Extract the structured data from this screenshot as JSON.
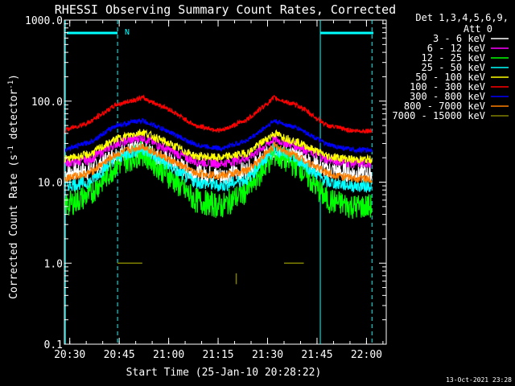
{
  "chart_data": {
    "type": "line",
    "title": "RHESSI Observing Summary Count Rates, Corrected",
    "xlabel": "Start Time (25-Jan-10 20:28:22)",
    "ylabel_main": "Corrected Count Rate (s",
    "ylabel_sup1": "-1",
    "ylabel_mid": " detector",
    "ylabel_sup2": "-1",
    "ylabel_end": ")",
    "yscale": "log",
    "ylim": [
      0.1,
      1000
    ],
    "xlim": [
      "20:28:22",
      "22:06:00"
    ],
    "x_ticks": [
      "20:30",
      "20:45",
      "21:00",
      "21:15",
      "21:30",
      "21:45",
      "22:00"
    ],
    "y_ticks": [
      "0.1",
      "1.0",
      "10.0",
      "100.0",
      "1000.0"
    ],
    "legend": {
      "placement": "top-right",
      "header1": "Det 1,3,4,5,6,9,",
      "header2": "Att 0"
    },
    "attenuator_flag": "N",
    "footer_date": "13-Oct-2021 23:28",
    "shading_bands": [
      {
        "type": "solid",
        "x": "20:28:40"
      },
      {
        "type": "dashed",
        "x": "20:44:30"
      },
      {
        "type": "solid",
        "x": "21:46:00"
      },
      {
        "type": "dashed",
        "x": "22:01:40"
      }
    ],
    "time_points": [
      "20:28",
      "20:36",
      "20:44",
      "20:52",
      "21:00",
      "21:08",
      "21:16",
      "21:24",
      "21:32",
      "21:40",
      "21:48",
      "21:56",
      "22:04"
    ],
    "series": [
      {
        "name": "3 - 6 keV",
        "color": "#ffffff",
        "values": [
          13,
          14,
          22,
          26,
          18,
          13,
          12,
          14,
          25,
          20,
          14,
          13,
          13
        ]
      },
      {
        "name": "6 - 12 keV",
        "color": "#ff00ff",
        "values": [
          17,
          19,
          30,
          36,
          25,
          18,
          17,
          20,
          34,
          27,
          19,
          17,
          17
        ]
      },
      {
        "name": "12 - 25 keV",
        "color": "#00ff00",
        "values": [
          5,
          7,
          16,
          23,
          12,
          6,
          5,
          8,
          22,
          15,
          6,
          5,
          5
        ]
      },
      {
        "name": "25 - 50 keV",
        "color": "#00ffff",
        "values": [
          9,
          10,
          20,
          26,
          16,
          10,
          9,
          11,
          26,
          18,
          10,
          9,
          9
        ]
      },
      {
        "name": "50 - 100 keV",
        "color": "#ffff00",
        "values": [
          19,
          22,
          34,
          42,
          30,
          21,
          20,
          23,
          40,
          30,
          21,
          19,
          19
        ]
      },
      {
        "name": "100 - 300 keV",
        "color": "#ff0000",
        "values": [
          43,
          55,
          90,
          110,
          80,
          50,
          43,
          60,
          110,
          85,
          50,
          43,
          43
        ]
      },
      {
        "name": "300 - 800 keV",
        "color": "#0000ff",
        "values": [
          25,
          31,
          50,
          58,
          42,
          29,
          26,
          33,
          57,
          45,
          29,
          25,
          25
        ]
      },
      {
        "name": "800 - 7000 keV",
        "color": "#ff8000",
        "values": [
          11,
          13,
          22,
          28,
          19,
          13,
          12,
          14,
          28,
          20,
          13,
          11,
          11
        ]
      },
      {
        "name": "7000 - 15000 keV",
        "color": "#808000",
        "values": [
          null,
          null,
          1.0,
          1.0,
          null,
          null,
          0.6,
          null,
          1.0,
          1.0,
          null,
          null,
          null
        ]
      }
    ]
  }
}
